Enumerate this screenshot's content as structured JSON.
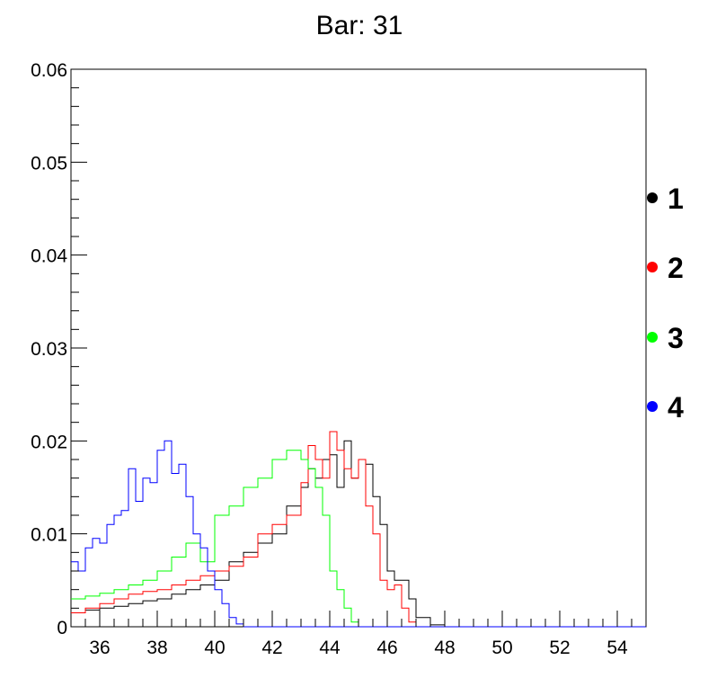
{
  "chart_data": {
    "type": "line",
    "title": "Bar: 31",
    "xlabel": "",
    "ylabel": "",
    "xlim": [
      35,
      55
    ],
    "ylim": [
      0,
      0.06
    ],
    "x_ticks": [
      36,
      38,
      40,
      42,
      44,
      46,
      48,
      50,
      52,
      54
    ],
    "x_tick_labels": [
      "36",
      "38",
      "40",
      "42",
      "44",
      "46",
      "48",
      "50",
      "52",
      "54"
    ],
    "y_ticks": [
      0,
      0.01,
      0.02,
      0.03,
      0.04,
      0.05,
      0.06
    ],
    "y_tick_labels": [
      "0",
      "0.01",
      "0.02",
      "0.03",
      "0.04",
      "0.05",
      "0.06"
    ],
    "grid": false,
    "legend_position": "right",
    "series": [
      {
        "name": "1",
        "color": "#000000",
        "x": [
          35,
          35.5,
          36,
          36.5,
          37,
          37.5,
          38,
          38.5,
          39,
          39.5,
          40,
          40.5,
          41,
          41.5,
          42,
          42.5,
          43,
          43.25,
          43.5,
          43.75,
          44,
          44.25,
          44.5,
          44.75,
          45,
          45.25,
          45.5,
          45.75,
          46,
          46.25,
          46.5,
          46.75,
          47,
          47.5,
          48,
          55
        ],
        "y": [
          0.0015,
          0.0018,
          0.002,
          0.0022,
          0.0025,
          0.0028,
          0.003,
          0.0035,
          0.004,
          0.0045,
          0.005,
          0.007,
          0.008,
          0.009,
          0.01,
          0.013,
          0.015,
          0.017,
          0.016,
          0.018,
          0.0185,
          0.015,
          0.02,
          0.016,
          0.018,
          0.0175,
          0.014,
          0.011,
          0.006,
          0.005,
          0.005,
          0.003,
          0.001,
          0.0002,
          0,
          0
        ]
      },
      {
        "name": "2",
        "color": "#ff0000",
        "x": [
          35,
          35.5,
          36,
          36.5,
          37,
          37.5,
          38,
          38.5,
          39,
          39.5,
          40,
          40.5,
          41,
          41.5,
          42,
          42.5,
          43,
          43.25,
          43.5,
          43.75,
          44,
          44.25,
          44.5,
          44.75,
          45,
          45.25,
          45.5,
          45.75,
          46,
          46.25,
          46.5,
          46.75,
          47,
          55
        ],
        "y": [
          0.0015,
          0.002,
          0.0025,
          0.003,
          0.0035,
          0.0038,
          0.004,
          0.0045,
          0.005,
          0.0055,
          0.006,
          0.0065,
          0.0075,
          0.01,
          0.011,
          0.012,
          0.0155,
          0.0195,
          0.018,
          0.016,
          0.021,
          0.019,
          0.017,
          0.016,
          0.018,
          0.013,
          0.01,
          0.005,
          0.004,
          0.0045,
          0.002,
          0.0005,
          0,
          0
        ]
      },
      {
        "name": "3",
        "color": "#00ff00",
        "x": [
          35,
          35.5,
          36,
          36.5,
          37,
          37.5,
          38,
          38.5,
          39,
          39.5,
          40,
          40.5,
          41,
          41.5,
          42,
          42.5,
          43,
          43.25,
          43.5,
          43.75,
          44,
          44.25,
          44.5,
          44.75,
          45,
          55
        ],
        "y": [
          0.003,
          0.0033,
          0.0036,
          0.004,
          0.0045,
          0.005,
          0.006,
          0.0075,
          0.009,
          0.007,
          0.012,
          0.013,
          0.015,
          0.016,
          0.018,
          0.019,
          0.018,
          0.017,
          0.015,
          0.012,
          0.006,
          0.004,
          0.002,
          0.0005,
          0,
          0
        ]
      },
      {
        "name": "4",
        "color": "#0000ff",
        "x": [
          35,
          35.25,
          35.5,
          35.75,
          36,
          36.25,
          36.5,
          36.75,
          37,
          37.25,
          37.5,
          37.75,
          38,
          38.25,
          38.5,
          38.75,
          39,
          39.25,
          39.5,
          39.75,
          40,
          40.25,
          40.5,
          40.75,
          41,
          55
        ],
        "y": [
          0.007,
          0.006,
          0.0085,
          0.0095,
          0.009,
          0.011,
          0.012,
          0.0125,
          0.017,
          0.0135,
          0.016,
          0.0155,
          0.019,
          0.02,
          0.0165,
          0.0175,
          0.014,
          0.01,
          0.0085,
          0.006,
          0.004,
          0.0025,
          0.001,
          0.0003,
          0,
          0
        ]
      }
    ]
  }
}
